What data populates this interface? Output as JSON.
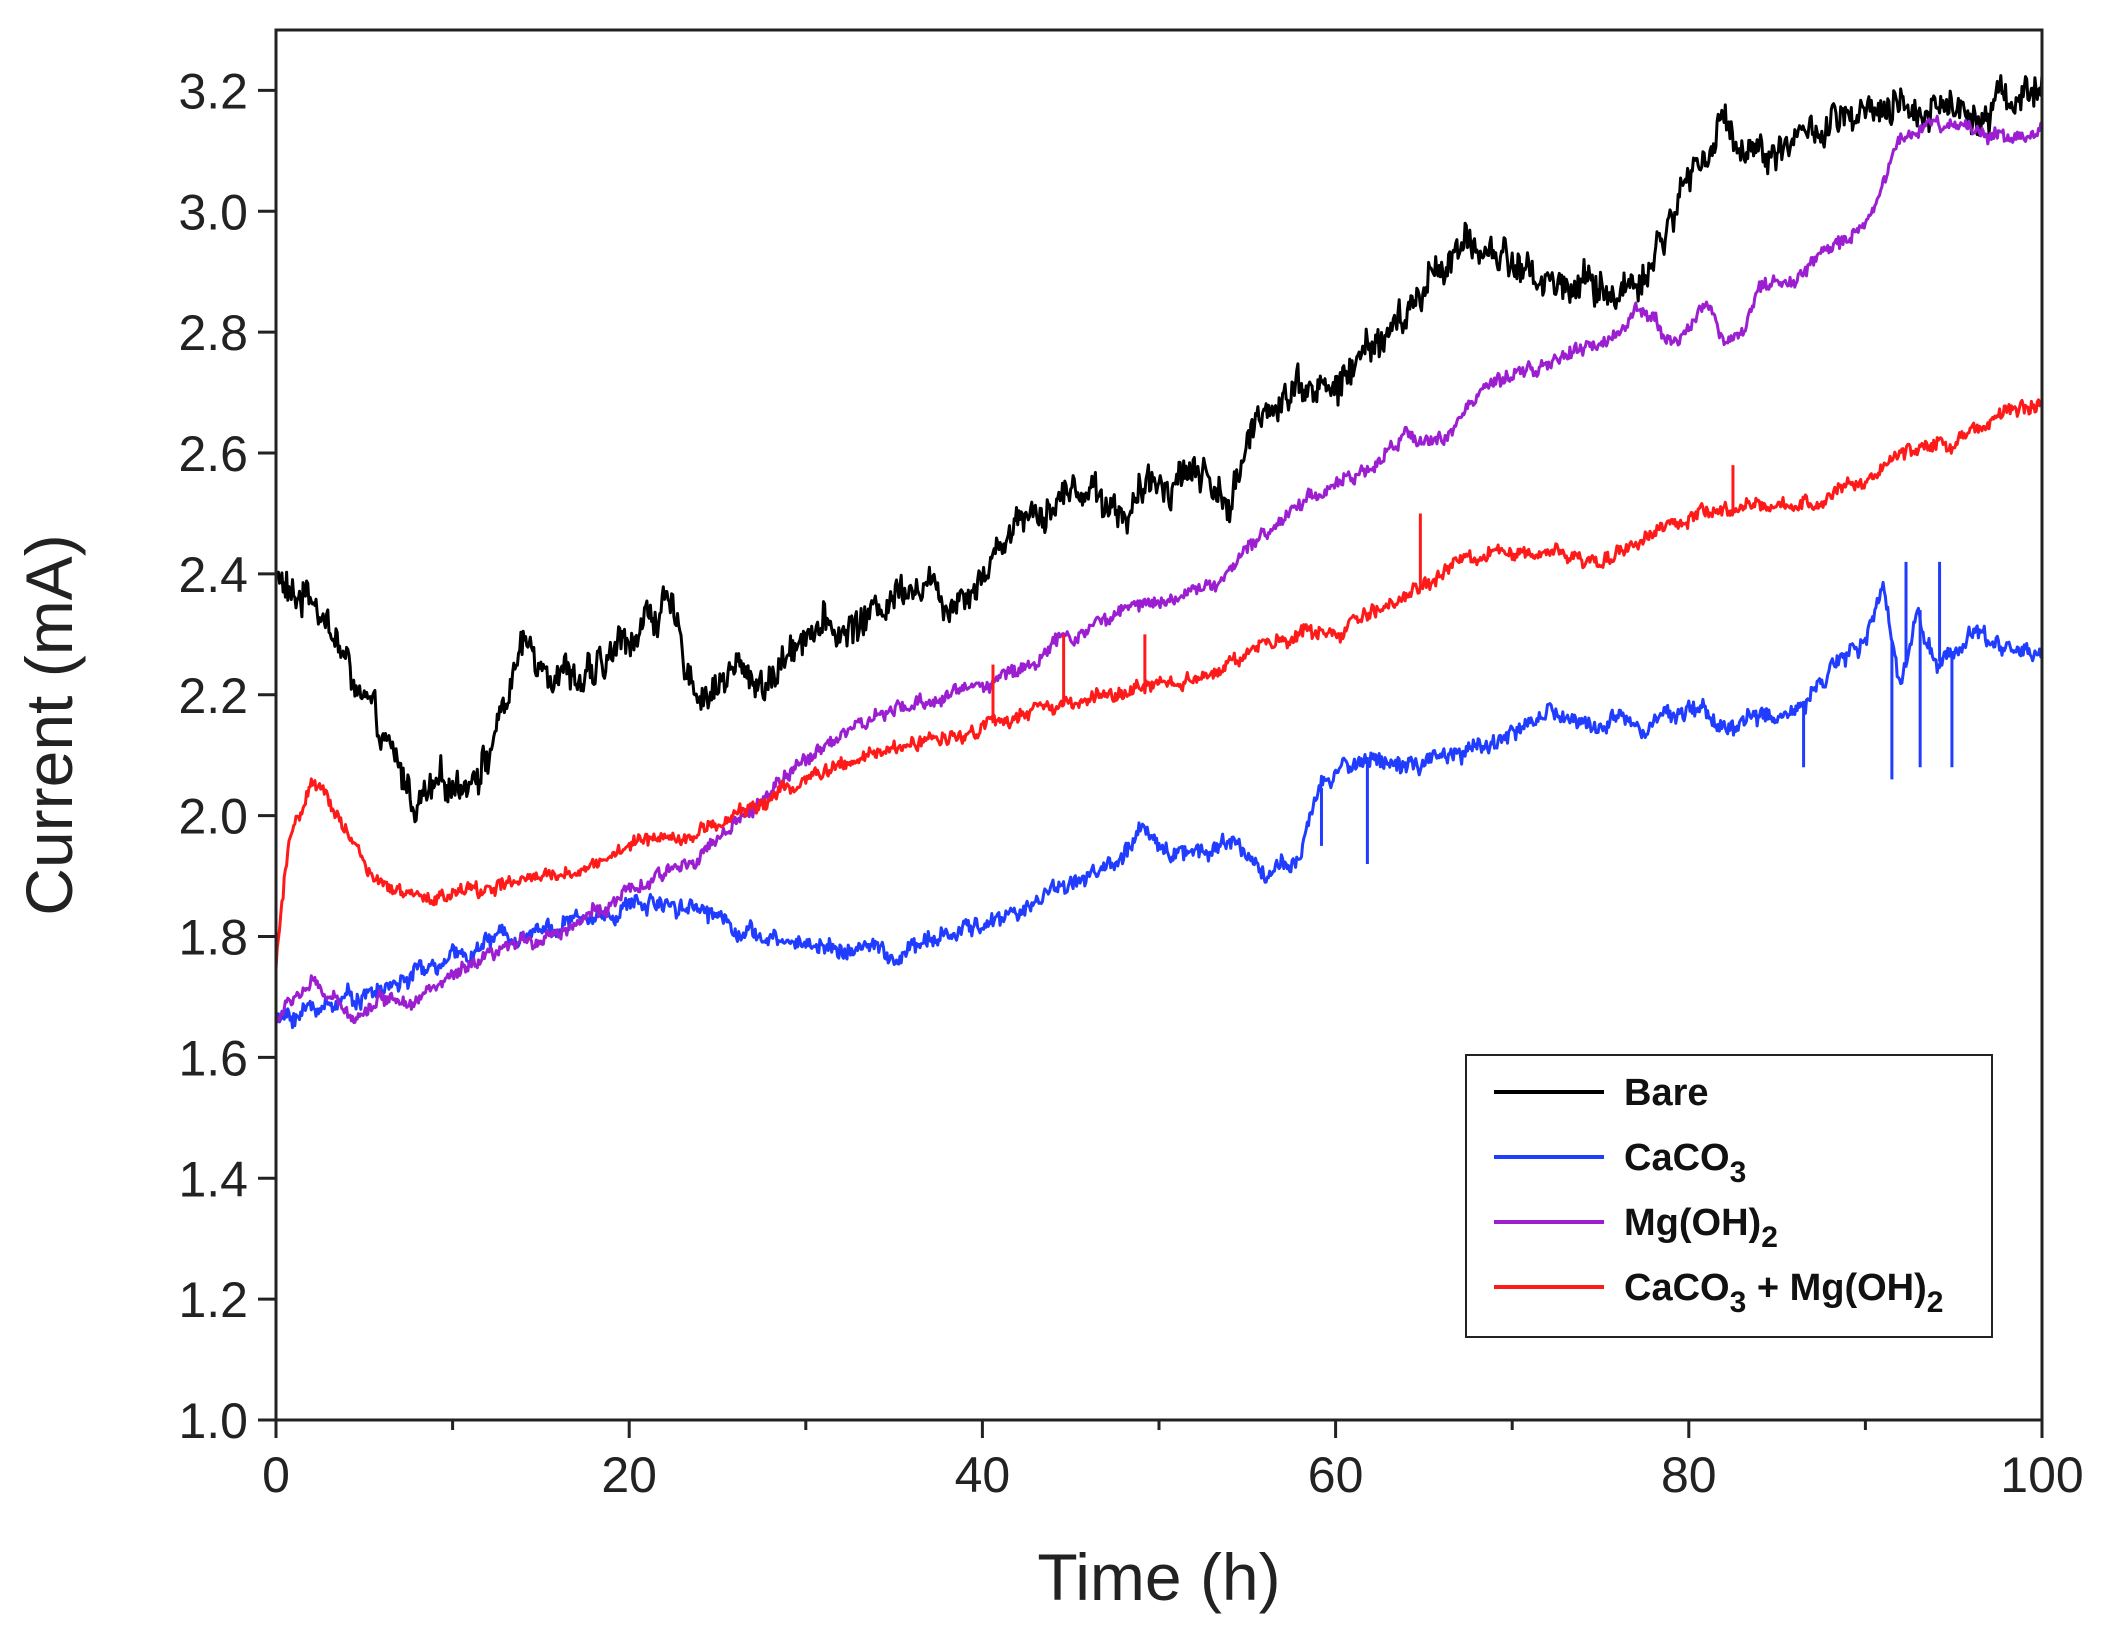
{
  "chart_data": {
    "type": "line",
    "title": "",
    "xlabel": "Time (h)",
    "ylabel": "Current (mA)",
    "xlim": [
      0,
      100
    ],
    "ylim": [
      1.0,
      3.3
    ],
    "xticks": [
      0,
      20,
      40,
      60,
      80,
      100
    ],
    "xtick_labels": [
      "0",
      "20",
      "40",
      "60",
      "80",
      "100"
    ],
    "yticks": [
      1.0,
      1.2,
      1.4,
      1.6,
      1.8,
      2.0,
      2.2,
      2.4,
      2.6,
      2.8,
      3.0,
      3.2
    ],
    "ytick_labels": [
      "1.0",
      "1.2",
      "1.4",
      "1.6",
      "1.8",
      "2.0",
      "2.2",
      "2.4",
      "2.6",
      "2.8",
      "3.0",
      "3.2"
    ],
    "grid": false,
    "legend_position": "bottom-right",
    "series": [
      {
        "name": "Bare",
        "label_main": "Bare",
        "label_sub": "",
        "label_rest": "",
        "label_sub2": "",
        "color": "#000000",
        "noise": 0.03,
        "x": [
          0,
          1,
          2,
          4,
          6,
          8,
          10,
          12,
          14,
          16,
          18,
          20,
          22,
          24,
          26,
          28,
          30,
          32,
          34,
          36,
          38,
          40,
          42,
          44,
          46,
          48,
          50,
          52,
          54,
          56,
          58,
          60,
          62,
          64,
          66,
          68,
          70,
          72,
          74,
          76,
          78,
          80,
          82,
          84,
          86,
          88,
          90,
          92,
          94,
          96,
          98,
          100
        ],
        "y": [
          2.4,
          2.35,
          2.38,
          2.25,
          2.12,
          2.02,
          2.05,
          2.1,
          2.28,
          2.25,
          2.22,
          2.3,
          2.35,
          2.2,
          2.24,
          2.22,
          2.32,
          2.3,
          2.34,
          2.4,
          2.36,
          2.4,
          2.5,
          2.52,
          2.55,
          2.5,
          2.55,
          2.58,
          2.52,
          2.68,
          2.72,
          2.7,
          2.78,
          2.82,
          2.92,
          2.94,
          2.92,
          2.88,
          2.88,
          2.86,
          2.92,
          3.06,
          3.14,
          3.1,
          3.12,
          3.14,
          3.15,
          3.16,
          3.18,
          3.17,
          3.19,
          3.2
        ]
      },
      {
        "name": "CaCO3",
        "label_main": "CaCO",
        "label_sub": "3",
        "label_rest": "",
        "label_sub2": "",
        "color": "#1f3cff",
        "noise": 0.015,
        "x": [
          0,
          2,
          4,
          6,
          8,
          10,
          12,
          14,
          16,
          18,
          20,
          22,
          24,
          26,
          28,
          30,
          32,
          34,
          35,
          36,
          38,
          40,
          42,
          44,
          46,
          48,
          49,
          50,
          52,
          54,
          56,
          58,
          59,
          60,
          62,
          64,
          66,
          68,
          70,
          72,
          74,
          76,
          78,
          80,
          82,
          84,
          86,
          88,
          90,
          91,
          92,
          93,
          94,
          96,
          98,
          100
        ],
        "y": [
          1.66,
          1.68,
          1.7,
          1.71,
          1.74,
          1.76,
          1.79,
          1.81,
          1.82,
          1.83,
          1.85,
          1.86,
          1.85,
          1.82,
          1.79,
          1.79,
          1.78,
          1.78,
          1.76,
          1.78,
          1.8,
          1.82,
          1.84,
          1.88,
          1.9,
          1.93,
          1.97,
          1.95,
          1.94,
          1.96,
          1.91,
          1.92,
          2.04,
          2.07,
          2.1,
          2.08,
          2.09,
          2.11,
          2.14,
          2.17,
          2.15,
          2.16,
          2.16,
          2.18,
          2.15,
          2.16,
          2.17,
          2.25,
          2.28,
          2.38,
          2.2,
          2.35,
          2.25,
          2.3,
          2.28,
          2.27
        ],
        "spikes": [
          [
            61.8,
            1.92
          ],
          [
            59.2,
            1.95
          ],
          [
            86.5,
            2.08
          ],
          [
            91.5,
            2.06
          ],
          [
            92.3,
            2.42
          ],
          [
            93.1,
            2.08
          ],
          [
            94.2,
            2.42
          ],
          [
            94.9,
            2.08
          ]
        ]
      },
      {
        "name": "Mg(OH)2",
        "label_main": "Mg(OH)",
        "label_sub": "2",
        "label_rest": "",
        "label_sub2": "",
        "color": "#9b1fd0",
        "noise": 0.012,
        "x": [
          0,
          1,
          2,
          3,
          4,
          5,
          6,
          8,
          10,
          12,
          14,
          16,
          18,
          20,
          22,
          24,
          26,
          28,
          30,
          32,
          34,
          36,
          38,
          40,
          42,
          44,
          46,
          48,
          50,
          52,
          54,
          56,
          58,
          60,
          62,
          64,
          66,
          68,
          70,
          72,
          74,
          76,
          77,
          78,
          79,
          80,
          81,
          82,
          83,
          84,
          86,
          88,
          90,
          92,
          94,
          96,
          98,
          100
        ],
        "y": [
          1.66,
          1.7,
          1.72,
          1.7,
          1.67,
          1.68,
          1.7,
          1.7,
          1.73,
          1.76,
          1.79,
          1.81,
          1.84,
          1.87,
          1.9,
          1.94,
          1.98,
          2.04,
          2.09,
          2.14,
          2.16,
          2.18,
          2.2,
          2.22,
          2.24,
          2.28,
          2.31,
          2.34,
          2.36,
          2.37,
          2.4,
          2.47,
          2.52,
          2.55,
          2.57,
          2.63,
          2.62,
          2.7,
          2.72,
          2.75,
          2.77,
          2.79,
          2.85,
          2.82,
          2.78,
          2.8,
          2.86,
          2.78,
          2.8,
          2.88,
          2.88,
          2.94,
          2.98,
          3.12,
          3.15,
          3.14,
          3.12,
          3.14
        ]
      },
      {
        "name": "CaCO3 + Mg(OH)2",
        "label_main": "CaCO",
        "label_sub": "3",
        "label_rest": " + Mg(OH)",
        "label_sub2": "2",
        "color": "#ff1a1a",
        "noise": 0.012,
        "x": [
          0,
          0.5,
          1,
          2,
          3,
          4,
          5,
          6,
          8,
          10,
          12,
          14,
          16,
          18,
          20,
          22,
          24,
          26,
          28,
          30,
          32,
          34,
          36,
          38,
          40,
          42,
          44,
          46,
          48,
          50,
          52,
          54,
          56,
          58,
          60,
          62,
          64,
          66,
          68,
          70,
          72,
          74,
          76,
          78,
          80,
          82,
          84,
          86,
          88,
          90,
          92,
          94,
          96,
          98,
          100
        ],
        "y": [
          1.75,
          1.9,
          1.98,
          2.05,
          2.02,
          1.98,
          1.92,
          1.88,
          1.86,
          1.87,
          1.88,
          1.89,
          1.9,
          1.92,
          1.95,
          1.97,
          1.97,
          2.0,
          2.03,
          2.06,
          2.08,
          2.1,
          2.12,
          2.13,
          2.15,
          2.16,
          2.18,
          2.19,
          2.2,
          2.22,
          2.23,
          2.25,
          2.28,
          2.3,
          2.3,
          2.33,
          2.37,
          2.4,
          2.43,
          2.43,
          2.44,
          2.42,
          2.44,
          2.47,
          2.49,
          2.5,
          2.51,
          2.51,
          2.53,
          2.55,
          2.6,
          2.62,
          2.63,
          2.67,
          2.68
        ],
        "spikes": [
          [
            40.6,
            2.25
          ],
          [
            44.6,
            2.3
          ],
          [
            49.2,
            2.3
          ],
          [
            64.8,
            2.5
          ],
          [
            82.5,
            2.58
          ]
        ]
      }
    ]
  }
}
